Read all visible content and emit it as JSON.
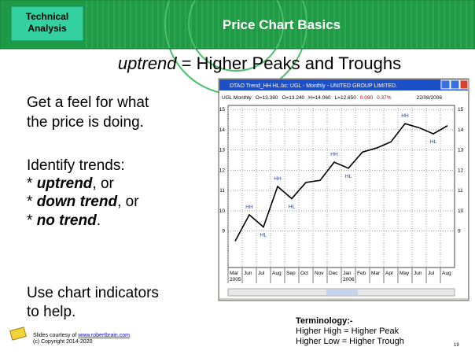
{
  "header": {
    "badge": [
      "Technical",
      "Analysis"
    ],
    "title": "Price Chart Basics"
  },
  "subtitle": {
    "emphasis": "uptrend",
    "rest": " = Higher Peaks and Troughs"
  },
  "body": {
    "intro": [
      "Get a feel for what",
      "the price is doing."
    ],
    "trends_heading": "Identify trends:",
    "trends": [
      {
        "bullet": "* ",
        "term": "uptrend",
        "tail": ", or"
      },
      {
        "bullet": "* ",
        "term": "down trend",
        "tail": ", or"
      },
      {
        "bullet": "* ",
        "term": "no trend",
        "tail": "."
      }
    ],
    "outro": [
      "Use chart indicators",
      "to help."
    ]
  },
  "footer": {
    "courtesy": "Slides courtesy of ",
    "link": "www.robertbrain.com",
    "copyright": "(c) Copyright 2014-2020",
    "page": "19"
  },
  "terminology": {
    "heading": "Terminology:-",
    "lines": [
      "Higher High = Higher Peak",
      "Higher Low = Higher Trough"
    ]
  },
  "chart_data": {
    "type": "line",
    "window_title": "DTAO Trend_HH HL.bc: UGL - Monthly - UNITED GROUP LIMITED.",
    "info": [
      "UGL Monthly",
      "O=13.380",
      "O=13.240",
      "H=14.060",
      "L=12.650",
      "0.090",
      "0.37%"
    ],
    "date": "22/08/2006",
    "categories": [
      "Mar",
      "Jun",
      "Jul",
      "Aug",
      "Sep",
      "Oct",
      "Nov",
      "Dec",
      "Jan",
      "Feb",
      "Mar",
      "Apr",
      "May",
      "Jun",
      "Jul",
      "Aug"
    ],
    "years": [
      {
        "label": "2005",
        "at": 0
      },
      {
        "label": "2006",
        "at": 8
      }
    ],
    "values": [
      8.5,
      9.8,
      9.2,
      11.2,
      10.6,
      11.4,
      11.5,
      12.4,
      12.1,
      12.9,
      13.1,
      13.4,
      14.3,
      14.1,
      13.8,
      14.2
    ],
    "color": "#000000",
    "annotations": [
      {
        "text": "HH",
        "point": 1
      },
      {
        "text": "HL",
        "point": 2
      },
      {
        "text": "HH",
        "point": 3
      },
      {
        "text": "HL",
        "point": 4
      },
      {
        "text": "HH",
        "point": 7
      },
      {
        "text": "HL",
        "point": 8
      },
      {
        "text": "HH",
        "point": 12
      },
      {
        "text": "HL",
        "point": 14
      }
    ],
    "ylim": [
      7.2,
      15.2
    ],
    "yticks": [
      9,
      10,
      11,
      12,
      13,
      14,
      15
    ],
    "grid": true
  }
}
